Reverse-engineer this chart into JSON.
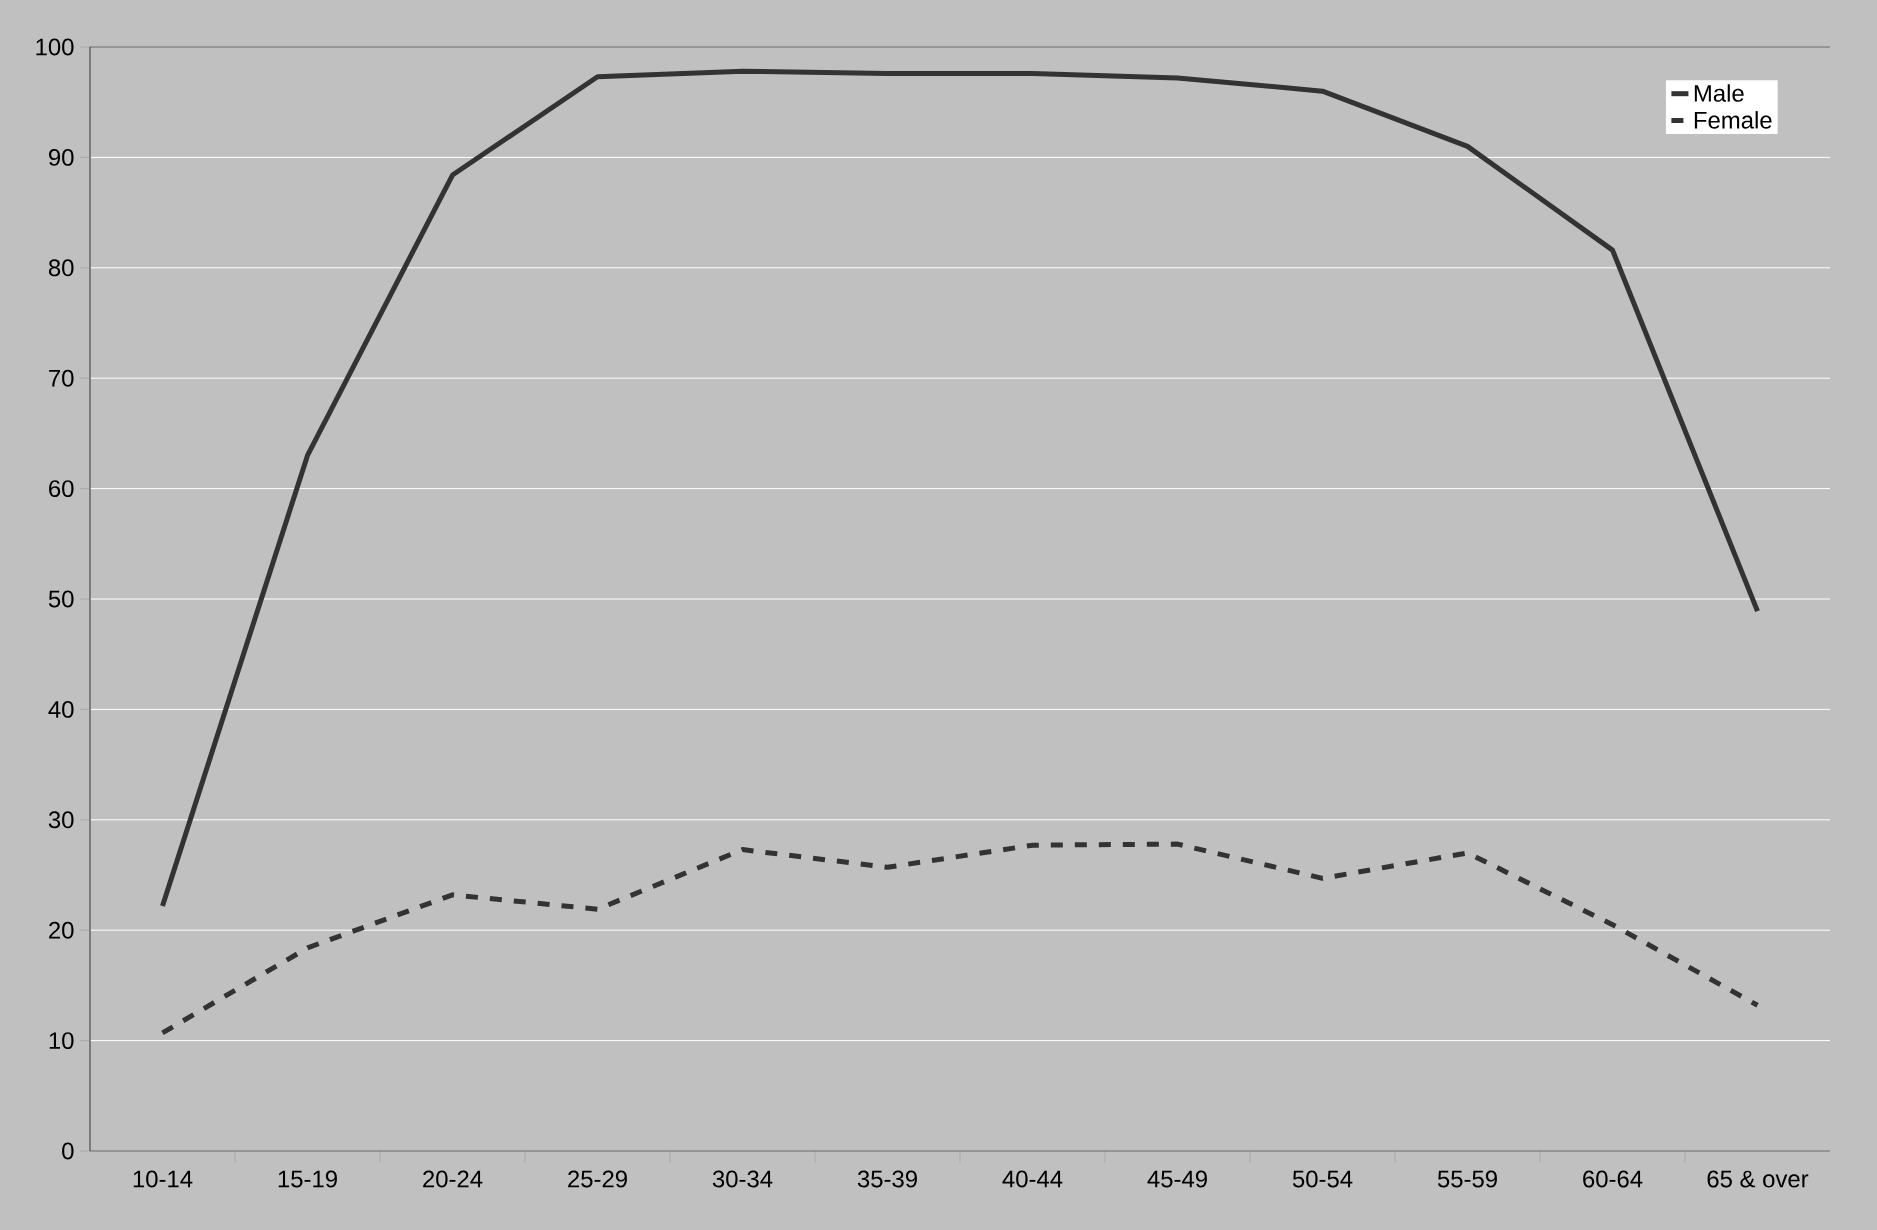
{
  "chart_data": {
    "type": "line",
    "categories": [
      "10-14",
      "15-19",
      "20-24",
      "25-29",
      "30-34",
      "35-39",
      "40-44",
      "45-49",
      "50-54",
      "55-59",
      "60-64",
      "65 & over"
    ],
    "series": [
      {
        "name": "Male",
        "color": "#333333",
        "line_style": "solid",
        "values": [
          22.2,
          63.0,
          88.4,
          97.3,
          97.8,
          97.6,
          97.6,
          97.2,
          96.0,
          91.0,
          81.6,
          48.9
        ]
      },
      {
        "name": "Female",
        "color": "#333333",
        "line_style": "dashed",
        "values": [
          10.7,
          18.4,
          23.2,
          21.9,
          27.3,
          25.7,
          27.7,
          27.8,
          24.7,
          27.0,
          20.5,
          13.2
        ]
      }
    ],
    "ylim": [
      0,
      100
    ],
    "yticks": [
      0,
      10,
      20,
      30,
      40,
      50,
      60,
      70,
      80,
      90,
      100
    ],
    "grid": "y",
    "legend": "top right"
  }
}
